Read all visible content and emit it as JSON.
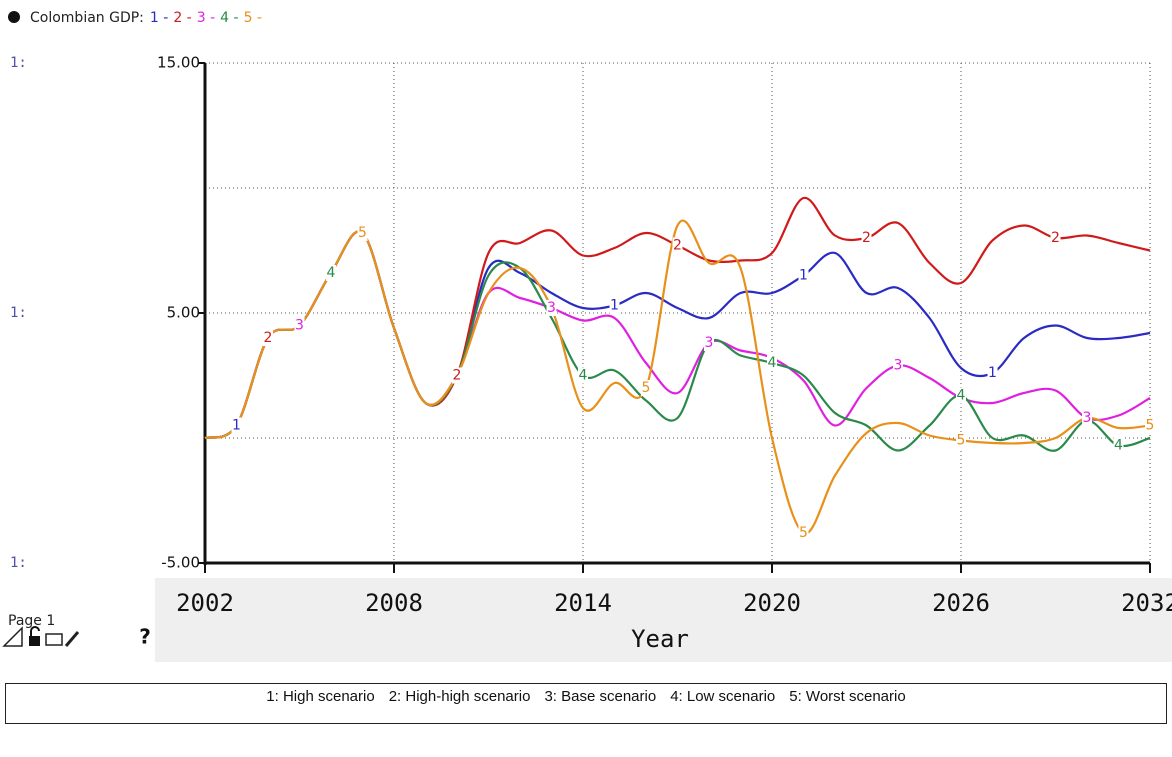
{
  "chart_data": {
    "type": "line",
    "title": "Colombian GDP:",
    "axis_prefix": "1:",
    "page_label": "Page 1",
    "help": "?",
    "xlabel": "Year",
    "x": [
      2002,
      2003,
      2004,
      2005,
      2006,
      2007,
      2008,
      2009,
      2010,
      2011,
      2012,
      2013,
      2014,
      2015,
      2016,
      2017,
      2018,
      2019,
      2020,
      2021,
      2022,
      2023,
      2024,
      2025,
      2026,
      2027,
      2028,
      2029,
      2030,
      2031,
      2032
    ],
    "xlim": [
      2002,
      2032
    ],
    "xticks": [
      2002,
      2008,
      2014,
      2020,
      2026,
      2032
    ],
    "ylim": [
      -5,
      15
    ],
    "yticks": [
      {
        "value": -5,
        "label": "-5.00"
      },
      {
        "value": 5,
        "label": "5.00"
      },
      {
        "value": 15,
        "label": "15.00"
      }
    ],
    "ygrid": [
      -5,
      0,
      5,
      10,
      15
    ],
    "grid": true,
    "series": [
      {
        "name": "1: High scenario",
        "key": "1 -",
        "marker": "1",
        "color": "#2a2ac4",
        "values": [
          0,
          0.5,
          4.0,
          4.5,
          6.6,
          8.2,
          4.4,
          1.4,
          2.5,
          6.8,
          6.6,
          5.8,
          5.2,
          5.3,
          5.8,
          5.2,
          4.8,
          5.8,
          5.8,
          6.5,
          7.4,
          5.8,
          6.0,
          4.8,
          2.8,
          2.6,
          4.0,
          4.5,
          4.0,
          4.0,
          4.2
        ]
      },
      {
        "name": "2: High-high scenario",
        "key": "2 -",
        "marker": "2",
        "color": "#d01a1a",
        "values": [
          0,
          0.5,
          4.0,
          4.5,
          6.6,
          8.2,
          4.4,
          1.4,
          2.5,
          7.4,
          7.8,
          8.3,
          7.3,
          7.6,
          8.2,
          7.7,
          7.1,
          7.1,
          7.4,
          9.6,
          8.1,
          8.0,
          8.6,
          7.0,
          6.2,
          7.9,
          8.5,
          8.0,
          8.1,
          7.8,
          7.5
        ]
      },
      {
        "name": "3: Base scenario",
        "key": "3 -",
        "marker": "3",
        "color": "#e020e0",
        "values": [
          0,
          0.5,
          4.0,
          4.5,
          6.6,
          8.2,
          4.4,
          1.4,
          2.5,
          5.8,
          5.6,
          5.2,
          4.7,
          4.8,
          3.0,
          1.8,
          3.8,
          3.5,
          3.2,
          2.3,
          0.5,
          2.0,
          2.9,
          2.4,
          1.6,
          1.4,
          1.8,
          1.9,
          0.8,
          0.9,
          1.6
        ]
      },
      {
        "name": "4: Low scenario",
        "key": "4 -",
        "marker": "4",
        "color": "#2a8a4a",
        "values": [
          0,
          0.5,
          4.0,
          4.5,
          6.6,
          8.2,
          4.4,
          1.4,
          2.5,
          6.5,
          6.8,
          4.8,
          2.5,
          2.7,
          1.5,
          0.8,
          3.8,
          3.3,
          3.0,
          2.5,
          1.0,
          0.5,
          -0.5,
          0.5,
          1.7,
          0.0,
          0.1,
          -0.5,
          0.7,
          -0.3,
          0
        ]
      },
      {
        "name": "5: Worst scenario",
        "key": "5 -",
        "marker": "5",
        "color": "#e8901a",
        "values": [
          0,
          0.5,
          4.0,
          4.5,
          6.6,
          8.2,
          4.4,
          1.4,
          2.5,
          5.8,
          6.8,
          5.2,
          1.2,
          2.2,
          2.0,
          8.5,
          7.0,
          6.8,
          0,
          -3.8,
          -1.5,
          0.2,
          0.6,
          0.1,
          -0.1,
          -0.2,
          -0.2,
          0,
          0.8,
          0.4,
          0.5
        ]
      }
    ]
  }
}
